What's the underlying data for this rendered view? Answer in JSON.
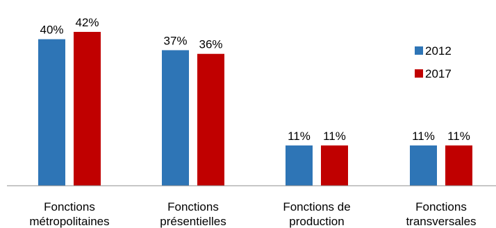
{
  "chart_data": {
    "type": "bar",
    "title": "",
    "xlabel": "",
    "ylabel": "",
    "categories": [
      [
        "Fonctions",
        "métropolitaines"
      ],
      [
        "Fonctions",
        "présentielles"
      ],
      [
        "Fonctions de",
        "production"
      ],
      [
        "Fonctions",
        "transversales"
      ]
    ],
    "series": [
      {
        "name": "2012",
        "color": "#2E75B6",
        "values": [
          40,
          37,
          11,
          11
        ],
        "labels": [
          "40%",
          "37%",
          "11%",
          "11%"
        ]
      },
      {
        "name": "2017",
        "color": "#C00000",
        "values": [
          42,
          36,
          11,
          11
        ],
        "labels": [
          "42%",
          "36%",
          "11%",
          "11%"
        ]
      }
    ],
    "ylim": [
      0,
      42
    ],
    "grid": false,
    "legend": "right",
    "value_unit": "%"
  }
}
